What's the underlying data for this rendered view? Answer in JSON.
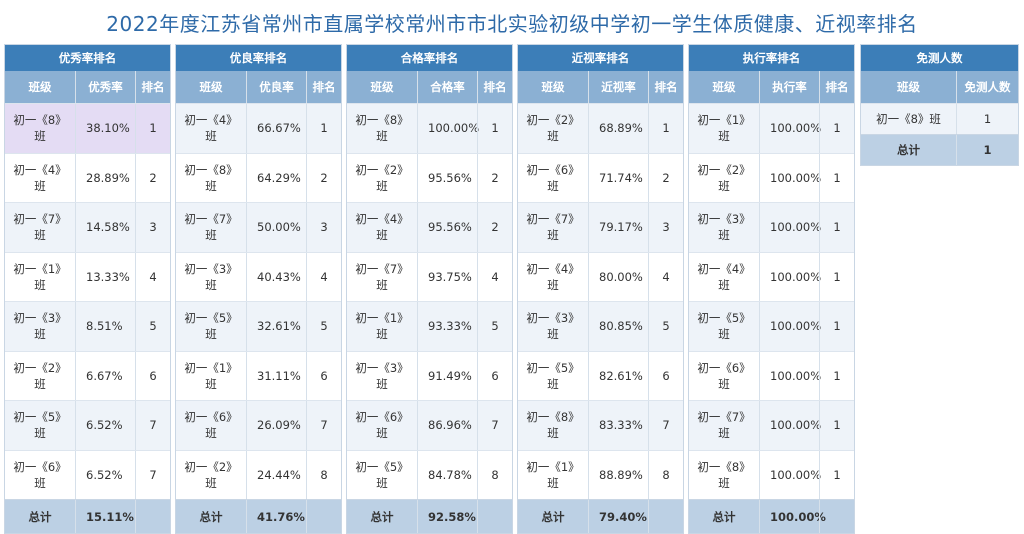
{
  "title": "2022年度江苏省常州市直属学校常州市市北实验初级中学初一学生体质健康、近视率排名",
  "panels": [
    {
      "heading": "优秀率排名",
      "columns": [
        "班级",
        "优秀率",
        "排名"
      ],
      "rows": [
        {
          "class": "初一《8》班",
          "value": "38.10%",
          "rank": "1"
        },
        {
          "class": "初一《4》班",
          "value": "28.89%",
          "rank": "2"
        },
        {
          "class": "初一《7》班",
          "value": "14.58%",
          "rank": "3"
        },
        {
          "class": "初一《1》班",
          "value": "13.33%",
          "rank": "4"
        },
        {
          "class": "初一《3》班",
          "value": "8.51%",
          "rank": "5"
        },
        {
          "class": "初一《2》班",
          "value": "6.67%",
          "rank": "6"
        },
        {
          "class": "初一《5》班",
          "value": "6.52%",
          "rank": "7"
        },
        {
          "class": "初一《6》班",
          "value": "6.52%",
          "rank": "7"
        }
      ],
      "total_label": "总计",
      "total_value": "15.11%"
    },
    {
      "heading": "优良率排名",
      "columns": [
        "班级",
        "优良率",
        "排名"
      ],
      "rows": [
        {
          "class": "初一《4》班",
          "value": "66.67%",
          "rank": "1"
        },
        {
          "class": "初一《8》班",
          "value": "64.29%",
          "rank": "2"
        },
        {
          "class": "初一《7》班",
          "value": "50.00%",
          "rank": "3"
        },
        {
          "class": "初一《3》班",
          "value": "40.43%",
          "rank": "4"
        },
        {
          "class": "初一《5》班",
          "value": "32.61%",
          "rank": "5"
        },
        {
          "class": "初一《1》班",
          "value": "31.11%",
          "rank": "6"
        },
        {
          "class": "初一《6》班",
          "value": "26.09%",
          "rank": "7"
        },
        {
          "class": "初一《2》班",
          "value": "24.44%",
          "rank": "8"
        }
      ],
      "total_label": "总计",
      "total_value": "41.76%"
    },
    {
      "heading": "合格率排名",
      "columns": [
        "班级",
        "合格率",
        "排名"
      ],
      "rows": [
        {
          "class": "初一《8》班",
          "value": "100.00%",
          "rank": "1"
        },
        {
          "class": "初一《2》班",
          "value": "95.56%",
          "rank": "2"
        },
        {
          "class": "初一《4》班",
          "value": "95.56%",
          "rank": "2"
        },
        {
          "class": "初一《7》班",
          "value": "93.75%",
          "rank": "4"
        },
        {
          "class": "初一《1》班",
          "value": "93.33%",
          "rank": "5"
        },
        {
          "class": "初一《3》班",
          "value": "91.49%",
          "rank": "6"
        },
        {
          "class": "初一《6》班",
          "value": "86.96%",
          "rank": "7"
        },
        {
          "class": "初一《5》班",
          "value": "84.78%",
          "rank": "8"
        }
      ],
      "total_label": "总计",
      "total_value": "92.58%"
    },
    {
      "heading": "近视率排名",
      "columns": [
        "班级",
        "近视率",
        "排名"
      ],
      "rows": [
        {
          "class": "初一《2》班",
          "value": "68.89%",
          "rank": "1"
        },
        {
          "class": "初一《6》班",
          "value": "71.74%",
          "rank": "2"
        },
        {
          "class": "初一《7》班",
          "value": "79.17%",
          "rank": "3"
        },
        {
          "class": "初一《4》班",
          "value": "80.00%",
          "rank": "4"
        },
        {
          "class": "初一《3》班",
          "value": "80.85%",
          "rank": "5"
        },
        {
          "class": "初一《5》班",
          "value": "82.61%",
          "rank": "6"
        },
        {
          "class": "初一《8》班",
          "value": "83.33%",
          "rank": "7"
        },
        {
          "class": "初一《1》班",
          "value": "88.89%",
          "rank": "8"
        }
      ],
      "total_label": "总计",
      "total_value": "79.40%"
    },
    {
      "heading": "执行率排名",
      "columns": [
        "班级",
        "执行率",
        "排名"
      ],
      "rows": [
        {
          "class": "初一《1》班",
          "value": "100.00%",
          "rank": "1"
        },
        {
          "class": "初一《2》班",
          "value": "100.00%",
          "rank": "1"
        },
        {
          "class": "初一《3》班",
          "value": "100.00%",
          "rank": "1"
        },
        {
          "class": "初一《4》班",
          "value": "100.00%",
          "rank": "1"
        },
        {
          "class": "初一《5》班",
          "value": "100.00%",
          "rank": "1"
        },
        {
          "class": "初一《6》班",
          "value": "100.00%",
          "rank": "1"
        },
        {
          "class": "初一《7》班",
          "value": "100.00%",
          "rank": "1"
        },
        {
          "class": "初一《8》班",
          "value": "100.00%",
          "rank": "1"
        }
      ],
      "total_label": "总计",
      "total_value": "100.00%"
    }
  ],
  "exempt": {
    "heading": "免测人数",
    "columns": [
      "班级",
      "免测人数"
    ],
    "rows": [
      {
        "class": "初一《8》班",
        "count": "1"
      }
    ],
    "total_label": "总计",
    "total_value": "1"
  },
  "colors": {
    "title": "#2e6aa8",
    "panel_header": "#3c7eb8",
    "column_header": "#8bb0d3",
    "total_row": "#bcd0e4",
    "highlight_row": "#e4dcf4"
  }
}
